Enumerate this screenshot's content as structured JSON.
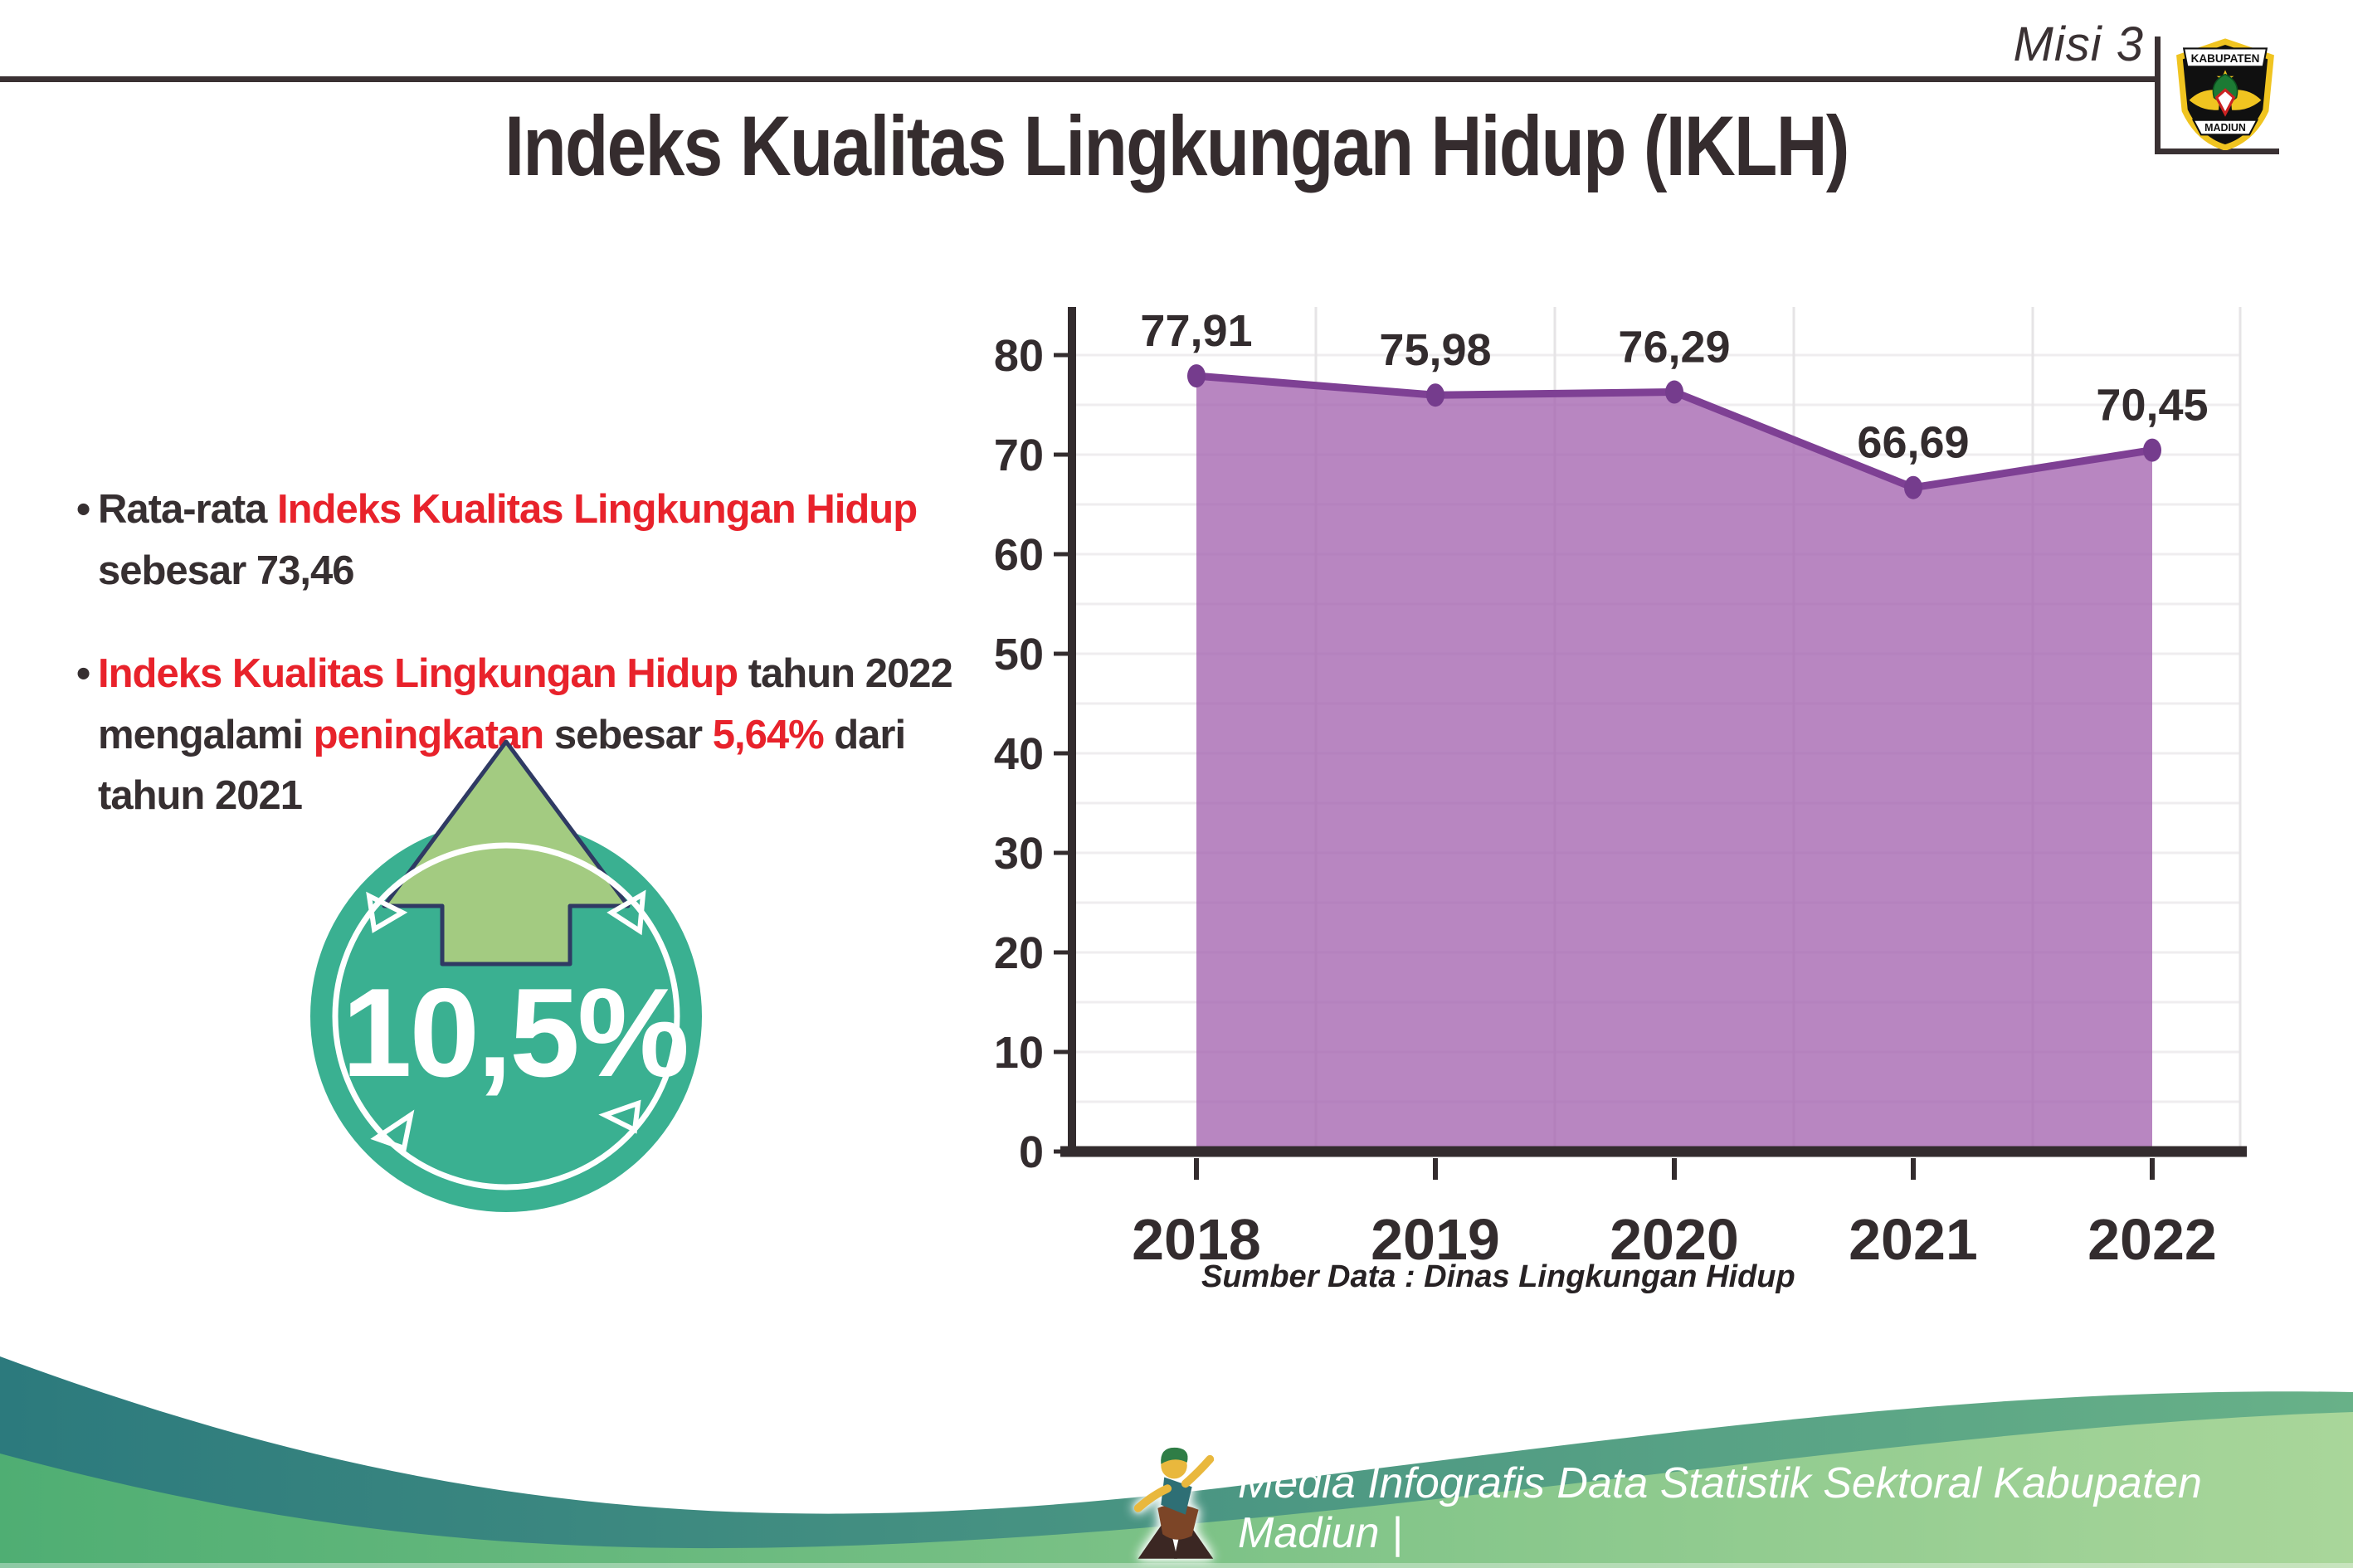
{
  "header": {
    "misi_label": "Misi 3",
    "title": "Indeks Kualitas Lingkungan Hidup (IKLH)",
    "logo": {
      "top_text": "KABUPATEN",
      "bottom_text": "MADIUN"
    }
  },
  "bullets": [
    {
      "segments": [
        {
          "text": "Rata-rata ",
          "color": "dark"
        },
        {
          "text": "Indeks Kualitas Lingkungan Hidup",
          "color": "red"
        },
        {
          "text": "\nsebesar 73,46",
          "color": "dark"
        }
      ]
    },
    {
      "segments": [
        {
          "text": "Indeks Kualitas Lingkungan Hidup",
          "color": "red"
        },
        {
          "text": " tahun 2022\nmengalami ",
          "color": "dark"
        },
        {
          "text": "peningkatan",
          "color": "red"
        },
        {
          "text": " sebesar ",
          "color": "dark"
        },
        {
          "text": "5,64%",
          "color": "red"
        },
        {
          "text": " dari\ntahun 2021",
          "color": "dark"
        }
      ]
    }
  ],
  "badge": {
    "value": "10,5%",
    "icon": "arrow-up"
  },
  "chart_data": {
    "type": "area",
    "title": "",
    "x": [
      "2018",
      "2019",
      "2020",
      "2021",
      "2022"
    ],
    "series": [
      {
        "name": "IKLH",
        "values": [
          77.91,
          75.98,
          76.29,
          66.69,
          70.45
        ]
      }
    ],
    "value_labels": [
      "77,91",
      "75,98",
      "76,29",
      "66,69",
      "70,45"
    ],
    "ylim": [
      0,
      85
    ],
    "yticks": [
      0,
      10,
      20,
      30,
      40,
      50,
      60,
      70,
      80
    ],
    "grid": {
      "horizontal_step": 5,
      "vertical": "between-categories"
    },
    "line_color": "#7e4094",
    "marker_color": "#753c8d",
    "fill_color": "#a464af",
    "fill_opacity": 0.78,
    "axis_color": "#332c2e",
    "label_color": "#332c2e",
    "gridline_color": "#e6e4e6"
  },
  "source_note": "Sumber Data : Dinas Lingkungan Hidup",
  "footer": {
    "caption": "Media Infografis Data Statistik Sektoral Kabupaten Madiun |"
  },
  "colors": {
    "badge_teal": "#3ab091",
    "arrow_green": "#a3cb81",
    "arrow_outline": "#2f3a63",
    "accent_red": "#e8222b",
    "text_dark": "#362f31"
  }
}
